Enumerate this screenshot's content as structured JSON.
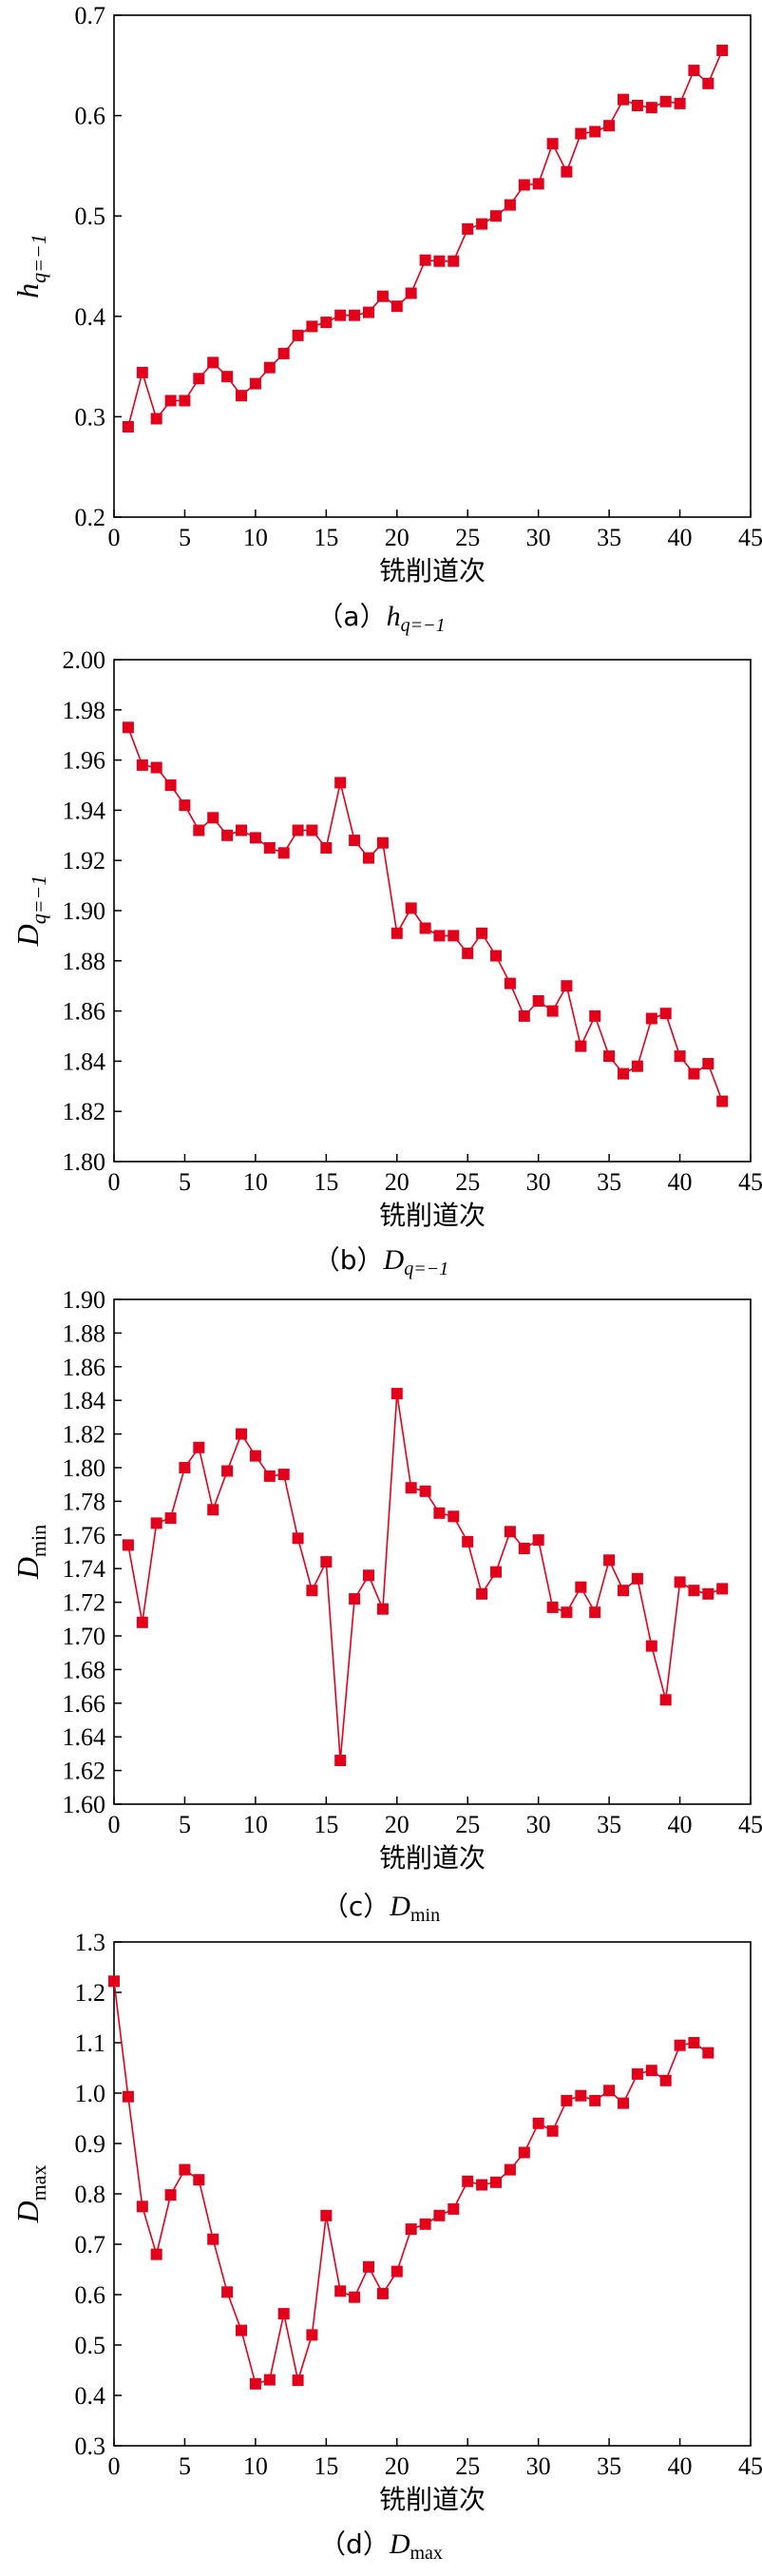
{
  "chart_data": [
    {
      "type": "line",
      "caption": "（a）h_{q=−1}",
      "caption_prefix": "（a）",
      "caption_main": "h",
      "caption_sub": "q=−1",
      "xlabel": "铣削道次",
      "ylabel_main": "h",
      "ylabel_sub": "q=−1",
      "xlim": [
        0,
        45
      ],
      "ylim": [
        0.2,
        0.7
      ],
      "xticks": [
        0,
        5,
        10,
        15,
        20,
        25,
        30,
        35,
        40,
        45
      ],
      "xticklabels": [
        "0",
        "5",
        "10",
        "15",
        "20",
        "25",
        "30",
        "35",
        "40",
        "45"
      ],
      "yticks": [
        0.2,
        0.3,
        0.4,
        0.5,
        0.6,
        0.7
      ],
      "yticklabels": [
        "0.2",
        "0.3",
        "0.4",
        "0.5",
        "0.6",
        "0.7"
      ],
      "color": "#e3001b",
      "x": [
        1,
        2,
        3,
        4,
        5,
        6,
        7,
        8,
        9,
        10,
        11,
        12,
        13,
        14,
        15,
        16,
        17,
        18,
        19,
        20,
        21,
        22,
        23,
        24,
        25,
        26,
        27,
        28,
        29,
        30,
        31,
        32,
        33,
        34,
        35,
        36,
        37,
        38,
        39,
        40,
        41,
        42,
        43
      ],
      "y": [
        0.29,
        0.344,
        0.298,
        0.316,
        0.316,
        0.338,
        0.354,
        0.34,
        0.321,
        0.333,
        0.349,
        0.363,
        0.381,
        0.39,
        0.394,
        0.401,
        0.401,
        0.404,
        0.42,
        0.41,
        0.423,
        0.456,
        0.455,
        0.455,
        0.487,
        0.492,
        0.5,
        0.511,
        0.531,
        0.532,
        0.572,
        0.544,
        0.582,
        0.584,
        0.59,
        0.616,
        0.61,
        0.608,
        0.614,
        0.612,
        0.645,
        0.632,
        0.665
      ]
    },
    {
      "type": "line",
      "caption": "（b）D_{q=−1}",
      "caption_prefix": "（b）",
      "caption_main": "D",
      "caption_sub": "q=−1",
      "xlabel": "铣削道次",
      "ylabel_main": "D",
      "ylabel_sub": "q=−1",
      "xlim": [
        0,
        45
      ],
      "ylim": [
        1.8,
        2.0
      ],
      "xticks": [
        0,
        5,
        10,
        15,
        20,
        25,
        30,
        35,
        40,
        45
      ],
      "xticklabels": [
        "0",
        "5",
        "10",
        "15",
        "20",
        "25",
        "30",
        "35",
        "40",
        "45"
      ],
      "yticks": [
        1.8,
        1.82,
        1.84,
        1.86,
        1.88,
        1.9,
        1.92,
        1.94,
        1.96,
        1.98,
        2.0
      ],
      "yticklabels": [
        "1.80",
        "1.82",
        "1.84",
        "1.86",
        "1.88",
        "1.90",
        "1.92",
        "1.94",
        "1.96",
        "1.98",
        "2.00"
      ],
      "color": "#e3001b",
      "x": [
        1,
        2,
        3,
        4,
        5,
        6,
        7,
        8,
        9,
        10,
        11,
        12,
        13,
        14,
        15,
        16,
        17,
        18,
        19,
        20,
        21,
        22,
        23,
        24,
        25,
        26,
        27,
        28,
        29,
        30,
        31,
        32,
        33,
        34,
        35,
        36,
        37,
        38,
        39,
        40,
        41,
        42,
        43
      ],
      "y": [
        1.973,
        1.958,
        1.957,
        1.95,
        1.942,
        1.932,
        1.937,
        1.93,
        1.932,
        1.929,
        1.925,
        1.923,
        1.932,
        1.932,
        1.925,
        1.951,
        1.928,
        1.921,
        1.927,
        1.891,
        1.901,
        1.893,
        1.89,
        1.89,
        1.883,
        1.891,
        1.882,
        1.871,
        1.858,
        1.864,
        1.86,
        1.87,
        1.846,
        1.858,
        1.842,
        1.835,
        1.838,
        1.857,
        1.859,
        1.842,
        1.835,
        1.839,
        1.824
      ]
    },
    {
      "type": "line",
      "caption": "（c）D_min",
      "caption_prefix": "（c）",
      "caption_main": "D",
      "caption_sub": "min",
      "xlabel": "铣削道次",
      "ylabel_main": "D",
      "ylabel_sub": "min",
      "xlim": [
        0,
        45
      ],
      "ylim": [
        1.6,
        1.9
      ],
      "xticks": [
        0,
        5,
        10,
        15,
        20,
        25,
        30,
        35,
        40,
        45
      ],
      "xticklabels": [
        "0",
        "5",
        "10",
        "15",
        "20",
        "25",
        "30",
        "35",
        "40",
        "45"
      ],
      "yticks": [
        1.6,
        1.62,
        1.64,
        1.66,
        1.68,
        1.7,
        1.72,
        1.74,
        1.76,
        1.78,
        1.8,
        1.82,
        1.84,
        1.86,
        1.88,
        1.9
      ],
      "yticklabels": [
        "1.60",
        "1.62",
        "1.64",
        "1.66",
        "1.68",
        "1.70",
        "1.72",
        "1.74",
        "1.76",
        "1.78",
        "1.80",
        "1.82",
        "1.84",
        "1.86",
        "1.88",
        "1.90"
      ],
      "color": "#e3001b",
      "x": [
        1,
        2,
        3,
        4,
        5,
        6,
        7,
        8,
        9,
        10,
        11,
        12,
        13,
        14,
        15,
        16,
        17,
        18,
        19,
        20,
        21,
        22,
        23,
        24,
        25,
        26,
        27,
        28,
        29,
        30,
        31,
        32,
        33,
        34,
        35,
        36,
        37,
        38,
        39,
        40,
        41,
        42,
        43
      ],
      "y": [
        1.754,
        1.708,
        1.767,
        1.77,
        1.8,
        1.812,
        1.775,
        1.798,
        1.82,
        1.807,
        1.795,
        1.796,
        1.758,
        1.727,
        1.744,
        1.626,
        1.722,
        1.736,
        1.716,
        1.844,
        1.788,
        1.786,
        1.773,
        1.771,
        1.756,
        1.725,
        1.738,
        1.762,
        1.752,
        1.757,
        1.717,
        1.714,
        1.729,
        1.714,
        1.745,
        1.727,
        1.734,
        1.694,
        1.662,
        1.732,
        1.727,
        1.725,
        1.728
      ]
    },
    {
      "type": "line",
      "caption": "（d）D_max",
      "caption_prefix": "（d）",
      "caption_main": "D",
      "caption_sub": "max",
      "xlabel": "铣削道次",
      "ylabel_main": "D",
      "ylabel_sub": "max",
      "xlim": [
        0,
        45
      ],
      "ylim": [
        0.3,
        1.3
      ],
      "xticks": [
        0,
        5,
        10,
        15,
        20,
        25,
        30,
        35,
        40,
        45
      ],
      "xticklabels": [
        "0",
        "5",
        "10",
        "15",
        "20",
        "25",
        "30",
        "35",
        "40",
        "45"
      ],
      "yticks": [
        0.3,
        0.4,
        0.5,
        0.6,
        0.7,
        0.8,
        0.9,
        1.0,
        1.1,
        1.2,
        1.3
      ],
      "yticklabels": [
        "0.3",
        "0.4",
        "0.5",
        "0.6",
        "0.7",
        "0.8",
        "0.9",
        "1.0",
        "1.1",
        "1.2",
        "1.3"
      ],
      "color": "#e3001b",
      "x": [
        0,
        1,
        2,
        3,
        4,
        5,
        6,
        7,
        8,
        9,
        10,
        11,
        12,
        13,
        14,
        15,
        16,
        17,
        18,
        19,
        20,
        21,
        22,
        23,
        24,
        25,
        26,
        27,
        28,
        29,
        30,
        31,
        32,
        33,
        34,
        35,
        36,
        37,
        38,
        39,
        40,
        41,
        42
      ],
      "y": [
        1.222,
        0.993,
        0.775,
        0.68,
        0.798,
        0.848,
        0.828,
        0.71,
        0.605,
        0.529,
        0.423,
        0.431,
        0.562,
        0.43,
        0.52,
        0.757,
        0.607,
        0.595,
        0.655,
        0.602,
        0.646,
        0.73,
        0.74,
        0.757,
        0.77,
        0.825,
        0.818,
        0.823,
        0.848,
        0.882,
        0.94,
        0.925,
        0.985,
        0.995,
        0.985,
        1.005,
        0.98,
        1.038,
        1.045,
        1.025,
        1.095,
        1.1,
        1.08
      ]
    }
  ]
}
